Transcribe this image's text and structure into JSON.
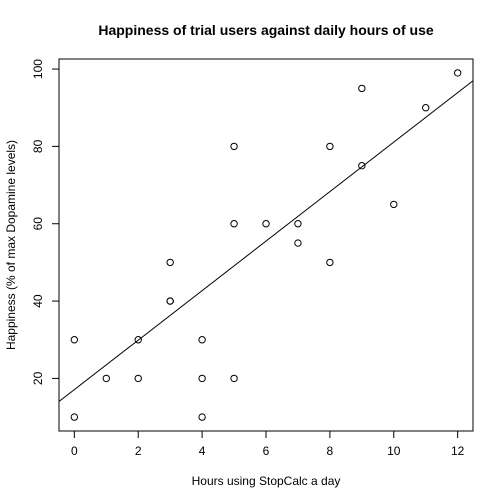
{
  "chart_data": {
    "type": "scatter",
    "title": "Happiness of trial users against daily hours of use",
    "xlabel": "Hours using StopCalc a day",
    "ylabel": "Happiness (% of max Dopamine levels)",
    "xlim": [
      -0.48,
      12.48
    ],
    "ylim": [
      6.4,
      102.6
    ],
    "x_ticks": [
      0,
      2,
      4,
      6,
      8,
      10,
      12
    ],
    "y_ticks": [
      20,
      40,
      60,
      80,
      100
    ],
    "grid": false,
    "legend": "none",
    "marker": "open-circle",
    "series": [
      {
        "points": [
          {
            "x": 0,
            "y": 30
          },
          {
            "x": 0,
            "y": 10
          },
          {
            "x": 1,
            "y": 20
          },
          {
            "x": 2,
            "y": 30
          },
          {
            "x": 2,
            "y": 20
          },
          {
            "x": 3,
            "y": 50
          },
          {
            "x": 3,
            "y": 40
          },
          {
            "x": 3,
            "y": 40
          },
          {
            "x": 4,
            "y": 30
          },
          {
            "x": 4,
            "y": 20
          },
          {
            "x": 4,
            "y": 10
          },
          {
            "x": 5,
            "y": 80
          },
          {
            "x": 5,
            "y": 60
          },
          {
            "x": 5,
            "y": 20
          },
          {
            "x": 6,
            "y": 60
          },
          {
            "x": 7,
            "y": 60
          },
          {
            "x": 7,
            "y": 55
          },
          {
            "x": 8,
            "y": 80
          },
          {
            "x": 8,
            "y": 50
          },
          {
            "x": 9,
            "y": 95
          },
          {
            "x": 9,
            "y": 75
          },
          {
            "x": 10,
            "y": 65
          },
          {
            "x": 11,
            "y": 90
          },
          {
            "x": 12,
            "y": 99
          }
        ]
      }
    ],
    "trend_line": {
      "intercept": 17.1,
      "slope": 6.4
    }
  }
}
